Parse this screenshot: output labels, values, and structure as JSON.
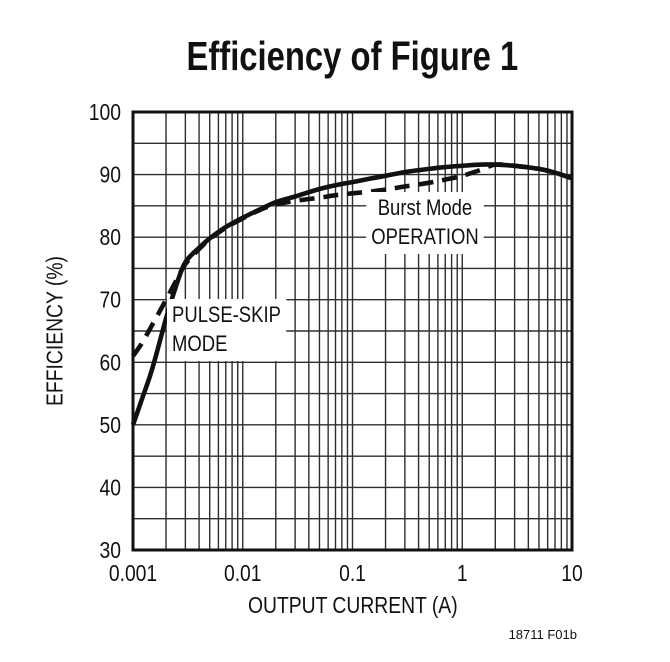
{
  "footnote": "18711 F01b",
  "chart_data": {
    "type": "line",
    "title": "Efficiency of Figure 1",
    "xlabel": "OUTPUT CURRENT (A)",
    "ylabel": "EFFICIENCY (%)",
    "xscale": "log",
    "xlim": [
      0.001,
      10
    ],
    "ylim": [
      30,
      100
    ],
    "ygrid_step": 5,
    "grid": true,
    "line_color": "#111111",
    "yticks": [
      100,
      90,
      80,
      70,
      60,
      50,
      40,
      30
    ],
    "xticks": [
      0.001,
      0.01,
      0.1,
      1,
      10
    ],
    "xtick_labels": [
      "0.001",
      "0.01",
      "0.1",
      "1",
      "10"
    ],
    "series": [
      {
        "name": "PULSE-SKIP MODE",
        "style": "solid",
        "x": [
          0.001,
          0.0012,
          0.0015,
          0.002,
          0.0025,
          0.003,
          0.004,
          0.005,
          0.007,
          0.01,
          0.015,
          0.02,
          0.03,
          0.05,
          0.07,
          0.1,
          0.15,
          0.2,
          0.3,
          0.5,
          0.7,
          1,
          1.5,
          2,
          3,
          5,
          7,
          10
        ],
        "y": [
          50,
          54,
          59,
          67,
          72.5,
          76,
          78.3,
          79.8,
          81.6,
          83.1,
          84.6,
          85.6,
          86.5,
          87.7,
          88.3,
          88.8,
          89.4,
          89.8,
          90.4,
          90.9,
          91.2,
          91.4,
          91.6,
          91.6,
          91.4,
          90.9,
          90.3,
          89.4
        ]
      },
      {
        "name": "Burst Mode OPERATION",
        "style": "dashed",
        "x": [
          0.001,
          0.0012,
          0.0015,
          0.002,
          0.0025,
          0.003,
          0.004,
          0.005,
          0.007,
          0.01,
          0.015,
          0.02,
          0.03,
          0.05,
          0.07,
          0.1,
          0.15,
          0.2,
          0.3,
          0.5,
          0.7,
          1,
          1.5,
          2,
          3,
          5,
          7,
          10
        ],
        "y": [
          61,
          63,
          66,
          70,
          73.2,
          75.7,
          78.1,
          79.7,
          81.5,
          83,
          84.5,
          85.2,
          85.8,
          86.3,
          86.7,
          87,
          87.3,
          87.6,
          88.1,
          88.7,
          89.2,
          89.8,
          90.8,
          91.6,
          91.4,
          90.9,
          90.3,
          89.4
        ]
      }
    ],
    "annotations": [
      {
        "name": "pulse-skip-mode",
        "lines": [
          "PULSE-SKIP",
          "MODE"
        ]
      },
      {
        "name": "burst-mode-operation",
        "lines": [
          "Burst Mode",
          "OPERATION"
        ]
      }
    ]
  }
}
